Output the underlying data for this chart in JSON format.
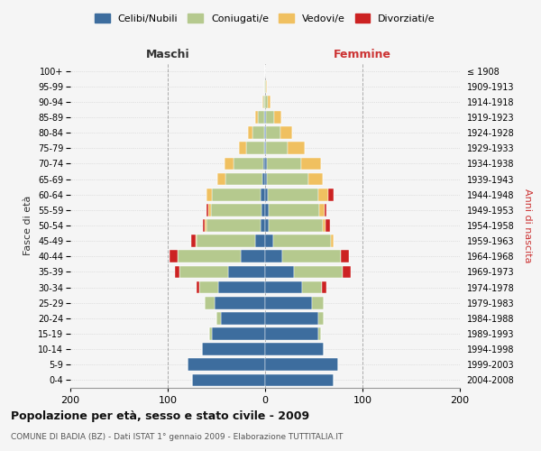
{
  "age_groups": [
    "0-4",
    "5-9",
    "10-14",
    "15-19",
    "20-24",
    "25-29",
    "30-34",
    "35-39",
    "40-44",
    "45-49",
    "50-54",
    "55-59",
    "60-64",
    "65-69",
    "70-74",
    "75-79",
    "80-84",
    "85-89",
    "90-94",
    "95-99",
    "100+"
  ],
  "birth_years": [
    "2004-2008",
    "1999-2003",
    "1994-1998",
    "1989-1993",
    "1984-1988",
    "1979-1983",
    "1974-1978",
    "1969-1973",
    "1964-1968",
    "1959-1963",
    "1954-1958",
    "1949-1953",
    "1944-1948",
    "1939-1943",
    "1934-1938",
    "1929-1933",
    "1924-1928",
    "1919-1923",
    "1914-1918",
    "1909-1913",
    "≤ 1908"
  ],
  "males": {
    "celibi": [
      75,
      80,
      65,
      55,
      45,
      52,
      48,
      38,
      25,
      10,
      5,
      4,
      5,
      3,
      2,
      1,
      1,
      1,
      0,
      0,
      0
    ],
    "coniugati": [
      0,
      0,
      0,
      2,
      5,
      10,
      20,
      50,
      65,
      60,
      55,
      52,
      50,
      38,
      30,
      18,
      12,
      6,
      2,
      1,
      0
    ],
    "vedovi": [
      0,
      0,
      0,
      0,
      0,
      0,
      0,
      0,
      0,
      1,
      2,
      2,
      5,
      8,
      10,
      8,
      5,
      3,
      1,
      0,
      0
    ],
    "divorziati": [
      0,
      0,
      0,
      0,
      0,
      0,
      2,
      5,
      8,
      5,
      2,
      2,
      0,
      0,
      0,
      0,
      0,
      0,
      0,
      0,
      0
    ]
  },
  "females": {
    "nubili": [
      70,
      75,
      60,
      55,
      55,
      48,
      38,
      30,
      18,
      8,
      4,
      4,
      3,
      2,
      2,
      1,
      1,
      1,
      0,
      0,
      0
    ],
    "coniugate": [
      0,
      0,
      0,
      2,
      5,
      12,
      20,
      50,
      60,
      60,
      55,
      52,
      52,
      42,
      35,
      22,
      15,
      8,
      3,
      1,
      0
    ],
    "vedove": [
      0,
      0,
      0,
      0,
      0,
      0,
      0,
      0,
      0,
      2,
      3,
      5,
      10,
      15,
      20,
      18,
      12,
      8,
      3,
      1,
      0
    ],
    "divorziate": [
      0,
      0,
      0,
      0,
      0,
      0,
      5,
      8,
      8,
      0,
      5,
      2,
      5,
      0,
      0,
      0,
      0,
      0,
      0,
      0,
      0
    ]
  },
  "colors": {
    "celibi": "#3d6d9e",
    "coniugati": "#b5c98e",
    "vedovi": "#f0c060",
    "divorziati": "#cc2222"
  },
  "title": "Popolazione per età, sesso e stato civile - 2009",
  "subtitle": "COMUNE DI BADIA (BZ) - Dati ISTAT 1° gennaio 2009 - Elaborazione TUTTITALIA.IT",
  "xlabel_left": "Maschi",
  "xlabel_right": "Femmine",
  "ylabel_left": "Fasce di età",
  "ylabel_right": "Anni di nascita",
  "xlim": 200,
  "background_color": "#f5f5f5",
  "grid_color": "#cccccc"
}
